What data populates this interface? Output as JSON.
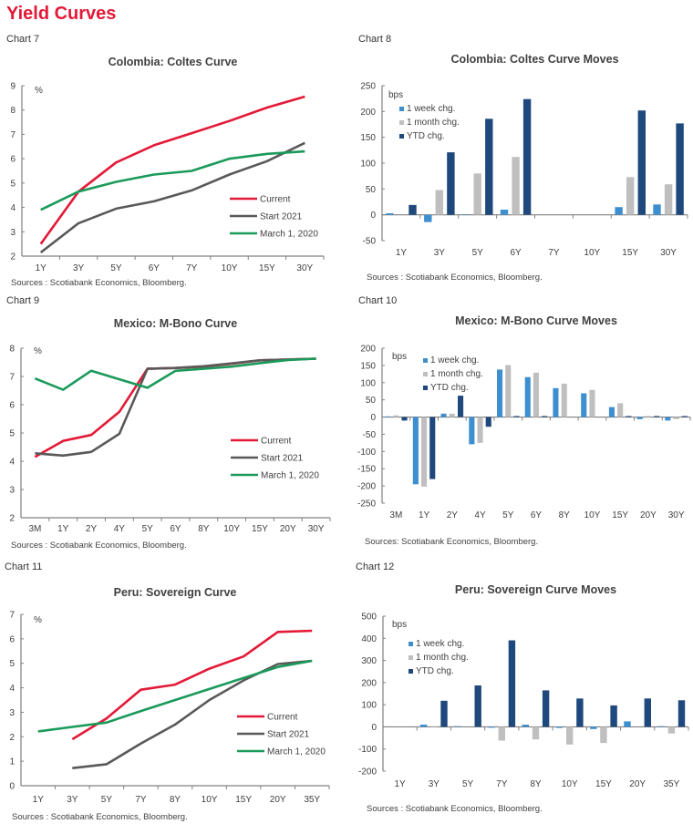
{
  "page": {
    "title": "Yield Curves"
  },
  "colors": {
    "current": "#e31937",
    "start2021": "#595959",
    "march2020": "#1a9a5a",
    "week": "#3d8fcf",
    "month": "#bfbfbf",
    "ytd": "#1f487c",
    "axis": "#808080"
  },
  "chart_data": [
    {
      "id": "chart7",
      "chart_number": "Chart 7",
      "type": "line",
      "title": "Colombia:  Coltes Curve",
      "unit": "%",
      "categories": [
        "1Y",
        "3Y",
        "5Y",
        "6Y",
        "7Y",
        "10Y",
        "15Y",
        "30Y"
      ],
      "ylim": [
        2,
        9
      ],
      "yticks": [
        2,
        3,
        4,
        5,
        6,
        7,
        8,
        9
      ],
      "legend_position": "center-right",
      "series": [
        {
          "name": "Current",
          "color_key": "current",
          "values": [
            2.5,
            4.65,
            5.85,
            6.55,
            7.05,
            7.55,
            8.1,
            8.55
          ]
        },
        {
          "name": "Start 2021",
          "color_key": "start2021",
          "values": [
            2.15,
            3.35,
            3.95,
            4.25,
            4.7,
            5.35,
            5.9,
            6.65
          ]
        },
        {
          "name": "March 1, 2020",
          "color_key": "march2020",
          "values": [
            3.9,
            4.65,
            5.05,
            5.35,
            5.5,
            6.0,
            6.2,
            6.3
          ]
        }
      ],
      "source": "Sources : Scotiabank Economics, Bloomberg."
    },
    {
      "id": "chart8",
      "chart_number": "Chart 8",
      "type": "bar",
      "title": "Colombia:  Coltes Curve Moves",
      "unit": "bps",
      "categories": [
        "1Y",
        "3Y",
        "5Y",
        "6Y",
        "7Y",
        "10Y",
        "15Y",
        "30Y"
      ],
      "ylim": [
        -50,
        250
      ],
      "yticks": [
        -50,
        0,
        50,
        100,
        150,
        200,
        250
      ],
      "legend_position": "top-left",
      "series": [
        {
          "name": "1 week chg.",
          "color_key": "week",
          "values": [
            3,
            -14,
            1,
            10,
            0,
            0,
            15,
            20
          ]
        },
        {
          "name": "1 month chg.",
          "color_key": "month",
          "values": [
            0,
            48,
            80,
            112,
            0,
            0,
            73,
            59
          ]
        },
        {
          "name": "YTD chg.",
          "color_key": "ytd",
          "values": [
            19,
            121,
            186,
            224,
            0,
            0,
            202,
            177
          ]
        }
      ],
      "source": "Sources : Scotiabank Economics, Bloomberg."
    },
    {
      "id": "chart9",
      "chart_number": "Chart 9",
      "type": "line",
      "title": "Mexico:  M-Bono Curve",
      "unit": "%",
      "categories": [
        "3M",
        "1Y",
        "2Y",
        "4Y",
        "5Y",
        "6Y",
        "8Y",
        "10Y",
        "15Y",
        "20Y",
        "30Y"
      ],
      "ylim": [
        2,
        8
      ],
      "yticks": [
        2,
        3,
        4,
        5,
        6,
        7,
        8
      ],
      "legend_position": "center-right",
      "series": [
        {
          "name": "Current",
          "color_key": "current",
          "values": [
            4.15,
            4.72,
            4.93,
            5.75,
            7.27,
            7.3,
            7.35,
            7.45,
            7.57,
            7.6,
            7.63
          ]
        },
        {
          "name": "Start 2021",
          "color_key": "start2021",
          "values": [
            4.28,
            4.2,
            4.33,
            4.97,
            7.27,
            7.3,
            7.36,
            7.46,
            7.57,
            7.6,
            7.63
          ]
        },
        {
          "name": "March 1, 2020",
          "color_key": "march2020",
          "values": [
            6.93,
            6.53,
            7.2,
            6.9,
            6.6,
            7.2,
            7.27,
            7.35,
            7.47,
            7.58,
            7.63
          ]
        }
      ],
      "source": "Sources : Scotiabank Economics, Bloomberg."
    },
    {
      "id": "chart10",
      "chart_number": "Chart 10",
      "type": "bar",
      "title": "Mexico:  M-Bono Curve Moves",
      "unit": "bps",
      "categories": [
        "3M",
        "1Y",
        "2Y",
        "4Y",
        "5Y",
        "6Y",
        "8Y",
        "10Y",
        "15Y",
        "20Y",
        "30Y"
      ],
      "ylim": [
        -250,
        200
      ],
      "yticks": [
        -250,
        -200,
        -150,
        -100,
        -50,
        0,
        50,
        100,
        150,
        200
      ],
      "legend_position": "top-left",
      "series": [
        {
          "name": "1 week chg.",
          "color_key": "week",
          "values": [
            2,
            -195,
            10,
            -79,
            138,
            116,
            84,
            69,
            29,
            -6,
            -10
          ]
        },
        {
          "name": "1 month chg.",
          "color_key": "month",
          "values": [
            5,
            -202,
            10,
            -75,
            151,
            129,
            97,
            79,
            40,
            3,
            -6
          ]
        },
        {
          "name": "YTD chg.",
          "color_key": "ytd",
          "values": [
            -10,
            -180,
            62,
            -28,
            3,
            3,
            0,
            0,
            3,
            3,
            3
          ]
        }
      ],
      "source": "Sources: Scotiabank Economics, Bloomberg."
    },
    {
      "id": "chart11",
      "chart_number": "Chart 11",
      "type": "line",
      "title": "Peru:  Sovereign Curve",
      "unit": "%",
      "categories": [
        "1Y",
        "3Y",
        "5Y",
        "7Y",
        "8Y",
        "10Y",
        "15Y",
        "20Y",
        "35Y"
      ],
      "ylim": [
        0,
        7
      ],
      "yticks": [
        0,
        1,
        2,
        3,
        4,
        5,
        6,
        7
      ],
      "legend_position": "center-right",
      "series": [
        {
          "name": "Current",
          "color_key": "current",
          "values": [
            null,
            1.9,
            2.75,
            3.92,
            4.13,
            4.78,
            5.28,
            6.28,
            6.33
          ]
        },
        {
          "name": "Start 2021",
          "color_key": "start2021",
          "values": [
            null,
            0.72,
            0.88,
            1.72,
            2.5,
            3.5,
            4.3,
            4.97,
            5.1
          ]
        },
        {
          "name": "March 1, 2020",
          "color_key": "march2020",
          "values": [
            2.22,
            2.4,
            2.58,
            3.05,
            3.5,
            3.95,
            4.4,
            4.85,
            5.1
          ]
        }
      ],
      "source": "Sources : Scotiabank Economics, Bloomberg."
    },
    {
      "id": "chart12",
      "chart_number": "Chart 12",
      "type": "bar",
      "title": "Peru:  Sovereign Curve Moves",
      "unit": "bps",
      "categories": [
        "1Y",
        "3Y",
        "5Y",
        "7Y",
        "8Y",
        "10Y",
        "15Y",
        "20Y",
        "35Y"
      ],
      "ylim": [
        -200,
        500
      ],
      "yticks": [
        -200,
        -100,
        0,
        100,
        200,
        300,
        400,
        500
      ],
      "legend_position": "top-left",
      "series": [
        {
          "name": "1 week chg.",
          "color_key": "week",
          "values": [
            0,
            10,
            3,
            -4,
            10,
            -5,
            -10,
            25,
            3
          ]
        },
        {
          "name": "1 month chg.",
          "color_key": "month",
          "values": [
            0,
            2,
            0,
            -62,
            -57,
            -80,
            -73,
            0,
            -30
          ]
        },
        {
          "name": "YTD chg.",
          "color_key": "ytd",
          "values": [
            0,
            118,
            187,
            391,
            165,
            128,
            97,
            128,
            120
          ]
        }
      ],
      "source": "Sources : Scotiabank Economics, Bloomberg."
    }
  ]
}
